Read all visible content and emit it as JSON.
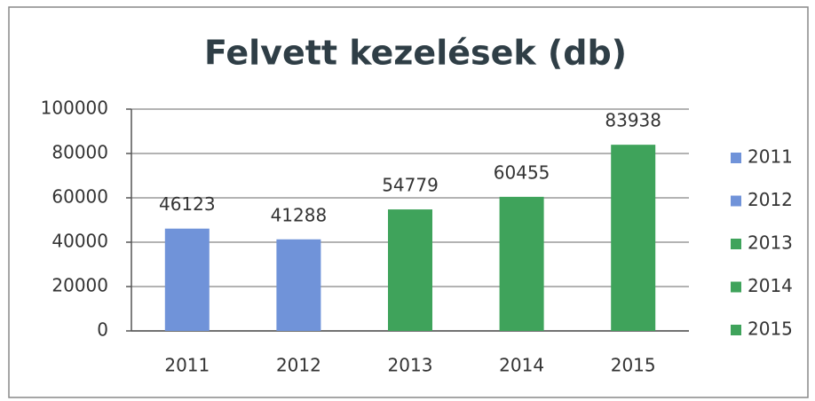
{
  "chart_data": {
    "type": "bar",
    "title": "Felvett kezelések (db)",
    "categories": [
      "2011",
      "2012",
      "2013",
      "2014",
      "2015"
    ],
    "values": [
      46123,
      41288,
      54779,
      60455,
      83938
    ],
    "colors": [
      "#7093d9",
      "#7093d9",
      "#3fa35b",
      "#3fa35b",
      "#3fa35b"
    ],
    "ylim": [
      0,
      100000
    ],
    "yticks": [
      0,
      20000,
      40000,
      60000,
      80000,
      100000
    ],
    "grid": true,
    "legend": "right"
  }
}
